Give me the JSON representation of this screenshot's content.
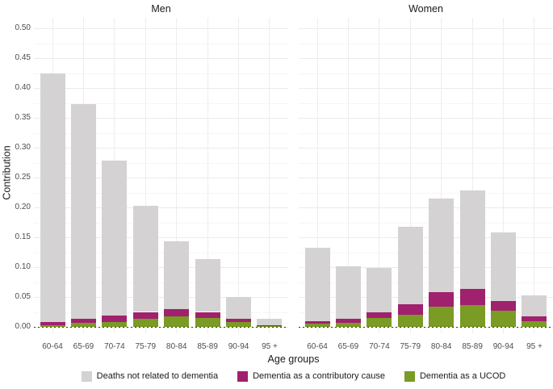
{
  "chart_data": {
    "type": "bar",
    "stacked": true,
    "title": "",
    "xlabel": "Age groups",
    "ylabel": "Contribution",
    "ylim": [
      0,
      0.52
    ],
    "grid": "on",
    "legend_position": "bottom",
    "categories": [
      "60-64",
      "65-69",
      "70-74",
      "75-79",
      "80-84",
      "85-89",
      "90-94",
      "95 +"
    ],
    "yticks": [
      "0.00",
      "0.05",
      "0.10",
      "0.15",
      "0.20",
      "0.25",
      "0.30",
      "0.35",
      "0.40",
      "0.45",
      "0.50"
    ],
    "ytick_values": [
      0,
      0.05,
      0.1,
      0.15,
      0.2,
      0.25,
      0.3,
      0.35,
      0.4,
      0.45,
      0.5
    ],
    "colors": {
      "not_related": "#d4d2d2",
      "contributory": "#a0216d",
      "ucod": "#7a9b24",
      "zero_line": "#333333",
      "grid_major": "#ebebeb",
      "grid_minor": "#f6f6f6"
    },
    "legend": [
      {
        "label": "Deaths not related to dementia",
        "color": "#d4d2d2"
      },
      {
        "label": "Dementia as a contributory cause",
        "color": "#a0216d"
      },
      {
        "label": "Dementia as a UCOD",
        "color": "#7a9b24"
      }
    ],
    "zero_line": {
      "style": "dashed",
      "color": "#333333",
      "y": 0
    },
    "facets": [
      {
        "label": "Men",
        "series": [
          {
            "name": "Dementia as a UCOD",
            "color": "#7a9b24",
            "values": [
              0.003,
              0.007,
              0.008,
              0.014,
              0.017,
              0.015,
              0.008,
              0.001
            ]
          },
          {
            "name": "Dementia as a contributory cause",
            "color": "#a0216d",
            "values": [
              0.005,
              0.007,
              0.011,
              0.011,
              0.013,
              0.01,
              0.005,
              0.002
            ]
          },
          {
            "name": "Deaths not related to dementia",
            "color": "#d4d2d2",
            "values": [
              0.417,
              0.359,
              0.259,
              0.178,
              0.113,
              0.088,
              0.037,
              0.011
            ]
          }
        ],
        "totals": [
          0.425,
          0.373,
          0.278,
          0.203,
          0.143,
          0.113,
          0.05,
          0.014
        ]
      },
      {
        "label": "Women",
        "series": [
          {
            "name": "Dementia as a UCOD",
            "color": "#7a9b24",
            "values": [
              0.006,
              0.007,
              0.015,
              0.02,
              0.034,
              0.037,
              0.027,
              0.01
            ]
          },
          {
            "name": "Dementia as a contributory cause",
            "color": "#a0216d",
            "values": [
              0.004,
              0.006,
              0.009,
              0.018,
              0.024,
              0.026,
              0.016,
              0.008
            ]
          },
          {
            "name": "Deaths not related to dementia",
            "color": "#d4d2d2",
            "values": [
              0.123,
              0.089,
              0.074,
              0.13,
              0.157,
              0.166,
              0.115,
              0.035
            ]
          }
        ],
        "totals": [
          0.133,
          0.102,
          0.098,
          0.168,
          0.215,
          0.229,
          0.158,
          0.053
        ]
      }
    ]
  }
}
